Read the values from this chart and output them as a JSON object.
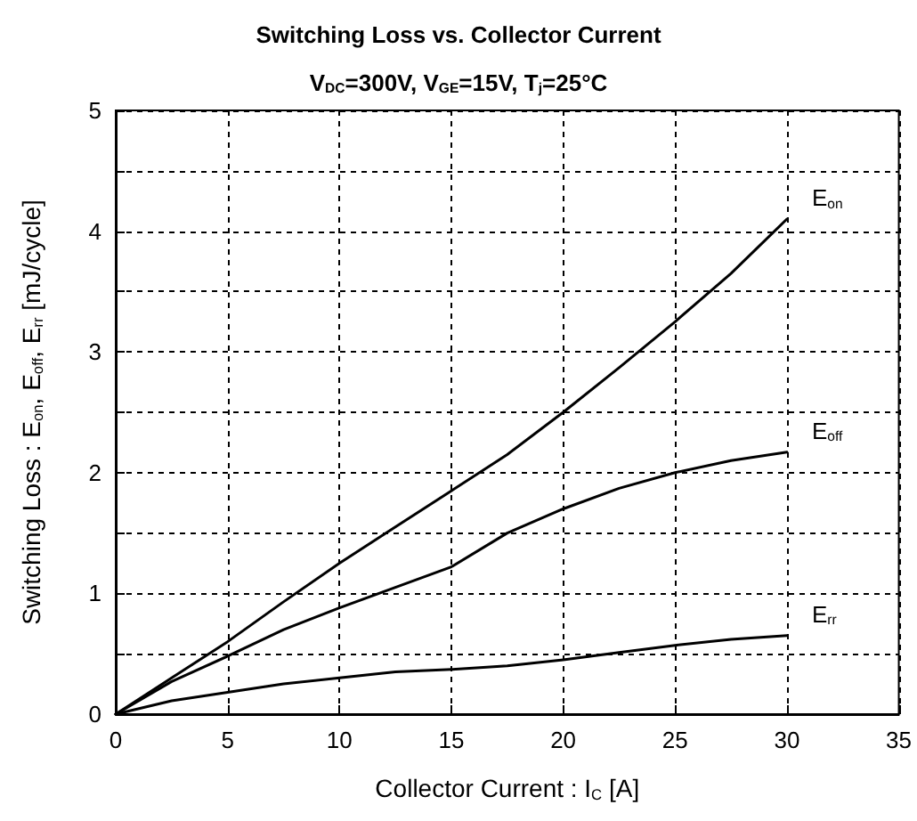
{
  "chart_data": {
    "type": "line",
    "title": "Switching Loss vs. Collector Current",
    "subtitle": "V$_{DC}$=300V, V$_{GE}$=15V, T$_{j}$=25°C",
    "xlabel": "Collector Current : I$_{C}$ [A]",
    "ylabel": "Switching Loss : E$_{on}$, E$_{off}$, E$_{rr}$ [mJ/cycle]",
    "series": [
      {
        "name": "E$_{on}$",
        "color": "#000000",
        "x": [
          0,
          2.5,
          5,
          7.5,
          10,
          12.5,
          15,
          17.5,
          20,
          22.5,
          25,
          27.5,
          30
        ],
        "values": [
          0,
          0.3,
          0.6,
          0.93,
          1.25,
          1.55,
          1.85,
          2.15,
          2.5,
          2.87,
          3.25,
          3.65,
          4.1
        ]
      },
      {
        "name": "E$_{off}$",
        "color": "#000000",
        "x": [
          0,
          2.5,
          5,
          7.5,
          10,
          12.5,
          15,
          17.5,
          20,
          22.5,
          25,
          27.5,
          30
        ],
        "values": [
          0,
          0.27,
          0.48,
          0.7,
          0.88,
          1.05,
          1.22,
          1.5,
          1.7,
          1.87,
          2.0,
          2.1,
          2.17
        ]
      },
      {
        "name": "E$_{rr}$",
        "color": "#000000",
        "x": [
          0,
          2.5,
          5,
          7.5,
          10,
          12.5,
          15,
          17.5,
          20,
          22.5,
          25,
          27.5,
          30
        ],
        "values": [
          0,
          0.11,
          0.18,
          0.25,
          0.3,
          0.35,
          0.37,
          0.4,
          0.45,
          0.51,
          0.57,
          0.62,
          0.65
        ]
      }
    ],
    "xlim": [
      0,
      35
    ],
    "xticks": [
      0,
      5,
      10,
      15,
      20,
      25,
      30,
      35
    ],
    "ylim": [
      0,
      5
    ],
    "yticks": [
      0,
      {
        "value": 0.5,
        "label": null
      },
      1,
      {
        "value": 1.5,
        "label": null
      },
      2,
      {
        "value": 2.5,
        "label": null
      },
      3,
      {
        "value": 3.5,
        "label": null
      },
      4,
      {
        "value": 4.5,
        "label": null
      },
      5
    ],
    "grid": true,
    "legend": false,
    "marker": "none",
    "line_style": "solid"
  }
}
